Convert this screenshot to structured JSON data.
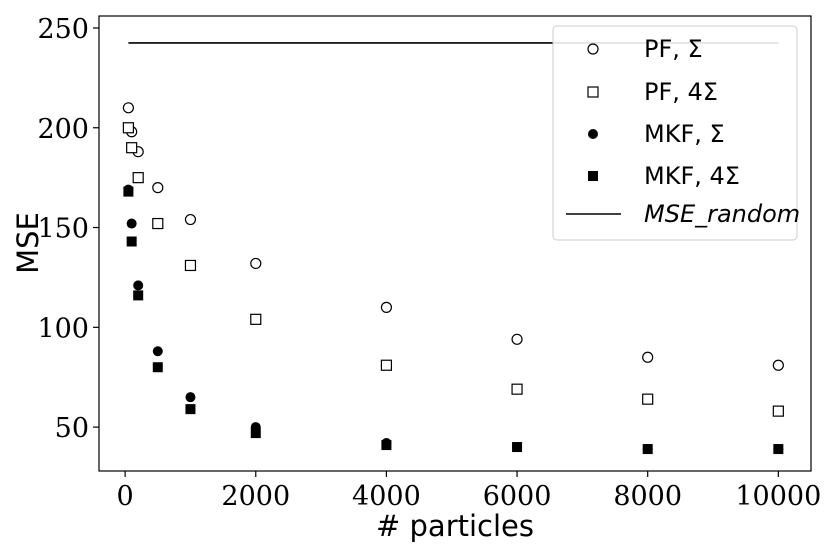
{
  "chart_data": {
    "type": "scatter",
    "xlabel": "# particles",
    "ylabel": "MSE",
    "xlim": [
      -400,
      10500
    ],
    "ylim": [
      28,
      256
    ],
    "xticks": [
      0,
      2000,
      4000,
      6000,
      8000,
      10000
    ],
    "yticks": [
      50,
      100,
      150,
      200,
      250
    ],
    "grid": false,
    "legend_position": "top-right",
    "series": [
      {
        "name": "PF, Σ",
        "marker": "circle-open",
        "x": [
          50,
          100,
          200,
          500,
          1000,
          2000,
          4000,
          6000,
          8000,
          10000
        ],
        "y": [
          210,
          198,
          188,
          170,
          154,
          132,
          110,
          94,
          85,
          81
        ]
      },
      {
        "name": "PF, 4Σ",
        "marker": "square-open",
        "x": [
          50,
          100,
          200,
          500,
          1000,
          2000,
          4000,
          6000,
          8000,
          10000
        ],
        "y": [
          200,
          190,
          175,
          152,
          131,
          104,
          81,
          69,
          64,
          58
        ]
      },
      {
        "name": "MKF, Σ",
        "marker": "circle-filled",
        "x": [
          50,
          100,
          200,
          500,
          1000,
          2000,
          4000,
          6000,
          8000,
          10000
        ],
        "y": [
          169,
          152,
          121,
          88,
          65,
          50,
          42,
          40,
          39,
          39
        ]
      },
      {
        "name": "MKF, 4Σ",
        "marker": "square-filled",
        "x": [
          50,
          100,
          200,
          500,
          1000,
          2000,
          4000,
          6000,
          8000,
          10000
        ],
        "y": [
          168,
          143,
          116,
          80,
          59,
          47,
          41,
          40,
          39,
          39
        ]
      },
      {
        "name": "MSE_random",
        "marker": "line",
        "x": [
          50,
          10000
        ],
        "y": [
          242.5,
          242.5
        ]
      }
    ]
  }
}
